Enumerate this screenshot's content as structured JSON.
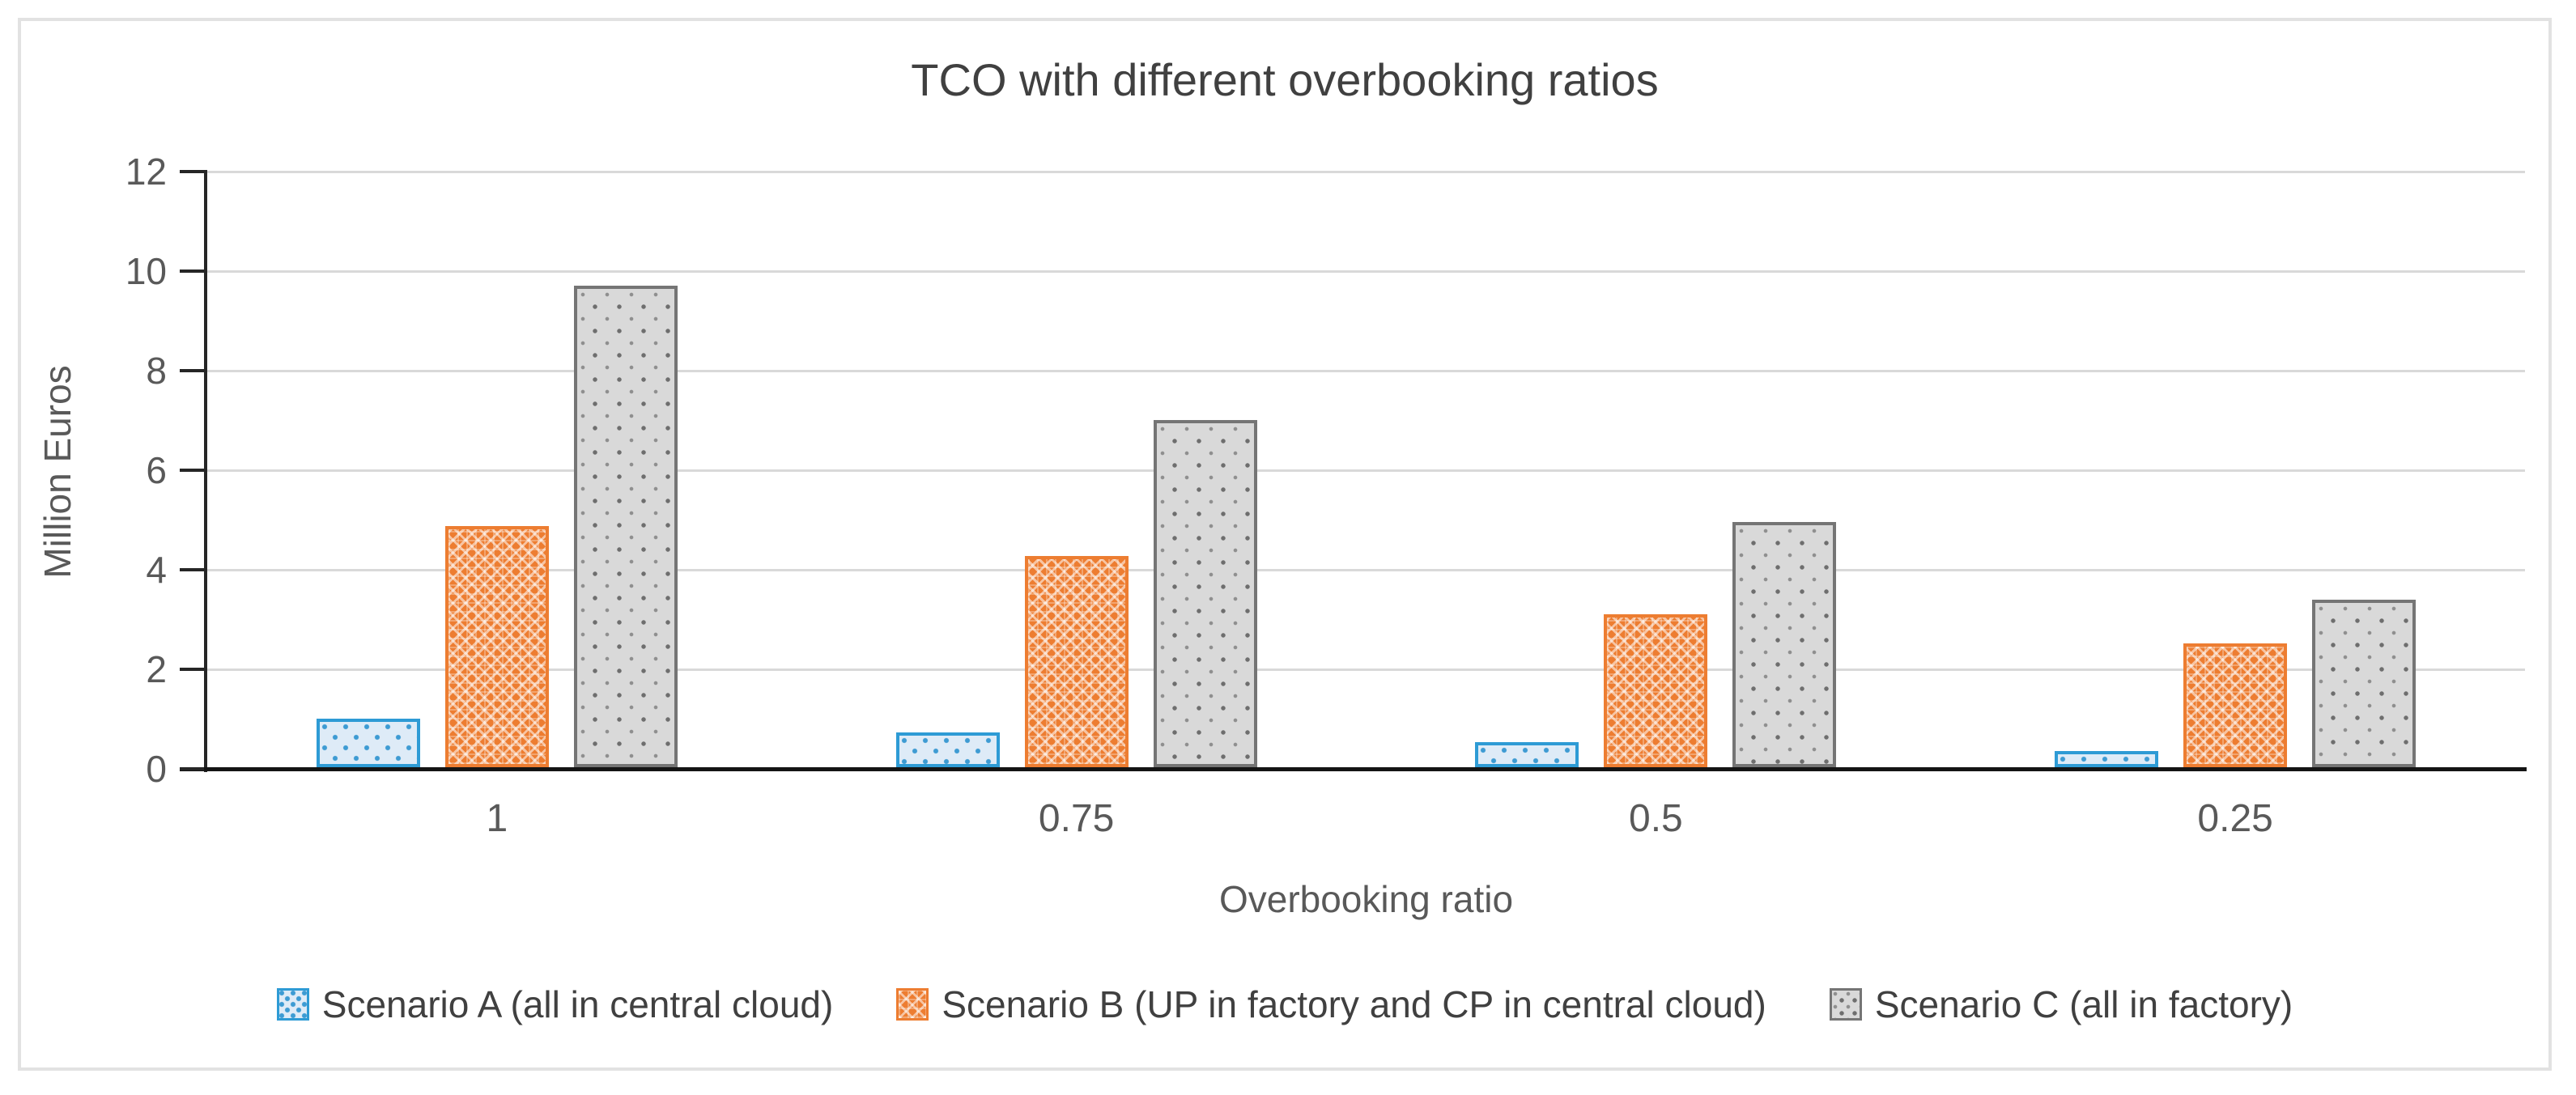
{
  "figure": {
    "title": "TCO with different overbooking ratios",
    "border_visible": true
  },
  "chart_data": {
    "type": "bar",
    "title": "TCO with different overbooking ratios",
    "xlabel": "Overbooking ratio",
    "ylabel": "Million Euros",
    "categories": [
      "1",
      "0.75",
      "0.5",
      "0.25"
    ],
    "series": [
      {
        "name": "Scenario A (all in central cloud)",
        "values": [
          0.97,
          0.7,
          0.5,
          0.33
        ],
        "color": "#2E9BD5",
        "fill": "#DEEBF7",
        "dot": "#3D9BD3",
        "pattern": "dot-grid"
      },
      {
        "name": "Scenario B (UP in factory and CP in central cloud)",
        "values": [
          4.85,
          4.25,
          3.08,
          2.48
        ],
        "color": "#ED7D31",
        "fill": "#ED7D31",
        "dot": "#FFFFFF",
        "pattern": "weave-lattice"
      },
      {
        "name": "Scenario C (all in factory)",
        "values": [
          9.67,
          6.97,
          4.92,
          3.37
        ],
        "color": "#757575",
        "fill": "#D9D9D9",
        "dot": "#6E6E6E",
        "pattern": "sparse-dots"
      }
    ],
    "ylim": [
      0,
      12
    ],
    "ytick_step": 2,
    "yticks": [
      0,
      2,
      4,
      6,
      8,
      10,
      12
    ],
    "grid": true,
    "legend_position": "bottom",
    "colors": {
      "axis_line": "#262626",
      "baseline": "#141414",
      "gridline": "#D9D9D9",
      "tick_text": "#595959",
      "title_text": "#404040"
    }
  }
}
